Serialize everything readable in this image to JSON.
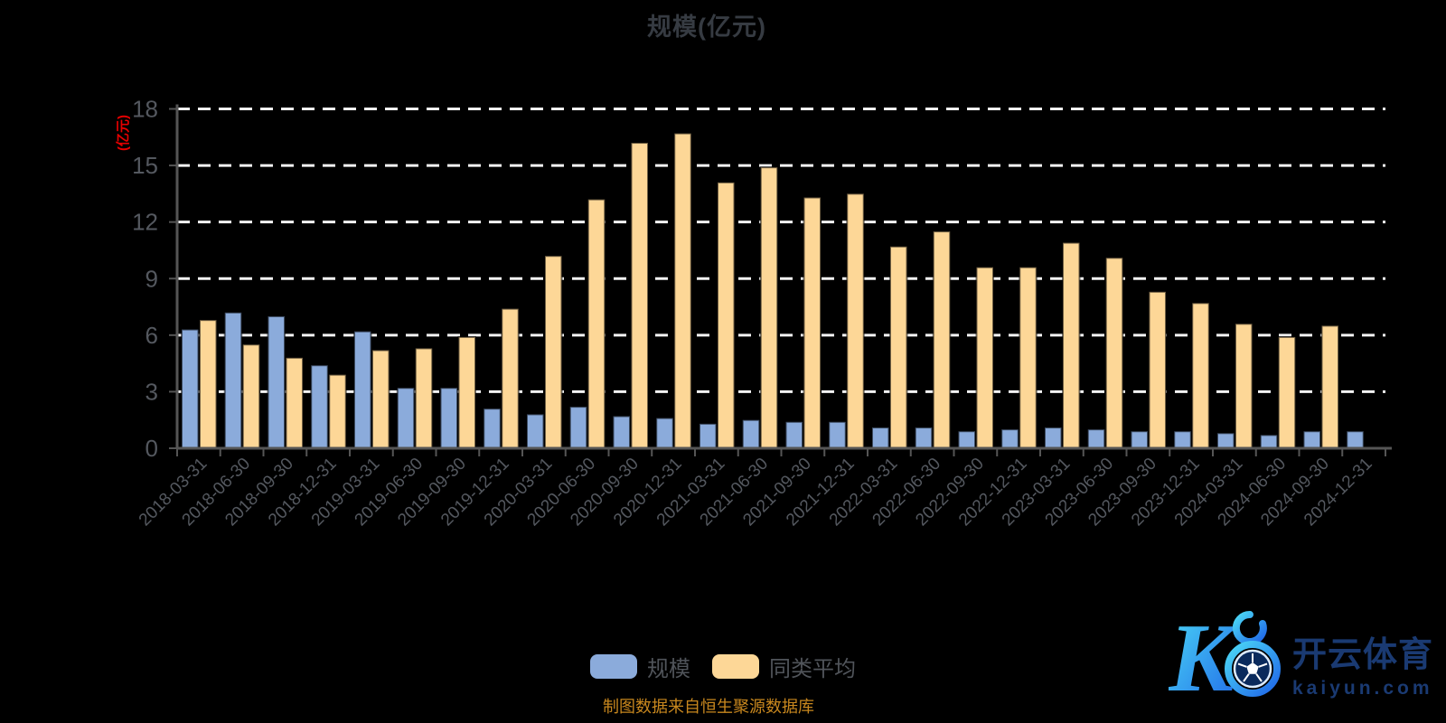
{
  "title": "规模(亿元)",
  "y_axis": {
    "name": "(亿元)",
    "name_color": "#e60000",
    "tick_color": "#54585f",
    "axis_color": "#555555"
  },
  "legend": [
    {
      "label": "规模",
      "color": "#8babdb"
    },
    {
      "label": "同类平均",
      "color": "#fdd797"
    }
  ],
  "footer_note": "制图数据来自恒生聚源数据库",
  "watermark": {
    "brand": "开云体育",
    "domain": "kaiyun.com",
    "logo_letter": "K"
  },
  "chart_data": {
    "type": "bar",
    "title": "规模(亿元)",
    "xlabel": "",
    "ylabel": "(亿元)",
    "ylim": [
      0,
      18
    ],
    "y_ticks": [
      0,
      3,
      6,
      9,
      12,
      15,
      18
    ],
    "grid": "horizontal-dashed-white",
    "legend_position": "bottom",
    "categories": [
      "2018-03-31",
      "2018-06-30",
      "2018-09-30",
      "2018-12-31",
      "2019-03-31",
      "2019-06-30",
      "2019-09-30",
      "2019-12-31",
      "2020-03-31",
      "2020-06-30",
      "2020-09-30",
      "2020-12-31",
      "2021-03-31",
      "2021-06-30",
      "2021-09-30",
      "2021-12-31",
      "2022-03-31",
      "2022-06-30",
      "2022-09-30",
      "2022-12-31",
      "2023-03-31",
      "2023-06-30",
      "2023-09-30",
      "2023-12-31",
      "2024-03-31",
      "2024-06-30",
      "2024-09-30",
      "2024-12-31"
    ],
    "series": [
      {
        "name": "规模",
        "color": "#8babdb",
        "values": [
          6.3,
          7.2,
          7.0,
          4.4,
          6.2,
          3.2,
          3.2,
          2.1,
          1.8,
          2.2,
          1.7,
          1.6,
          1.3,
          1.5,
          1.4,
          1.4,
          1.1,
          1.1,
          0.9,
          1.0,
          1.1,
          1.0,
          0.9,
          0.9,
          0.8,
          0.7,
          0.9,
          0.9
        ]
      },
      {
        "name": "同类平均",
        "color": "#fdd797",
        "values": [
          6.8,
          5.5,
          4.8,
          3.9,
          5.2,
          5.3,
          5.9,
          7.4,
          10.2,
          13.2,
          16.2,
          16.7,
          14.1,
          14.9,
          13.3,
          13.5,
          10.7,
          11.5,
          9.6,
          9.6,
          10.9,
          10.1,
          8.3,
          7.7,
          6.6,
          5.9,
          6.5,
          null
        ]
      }
    ]
  }
}
